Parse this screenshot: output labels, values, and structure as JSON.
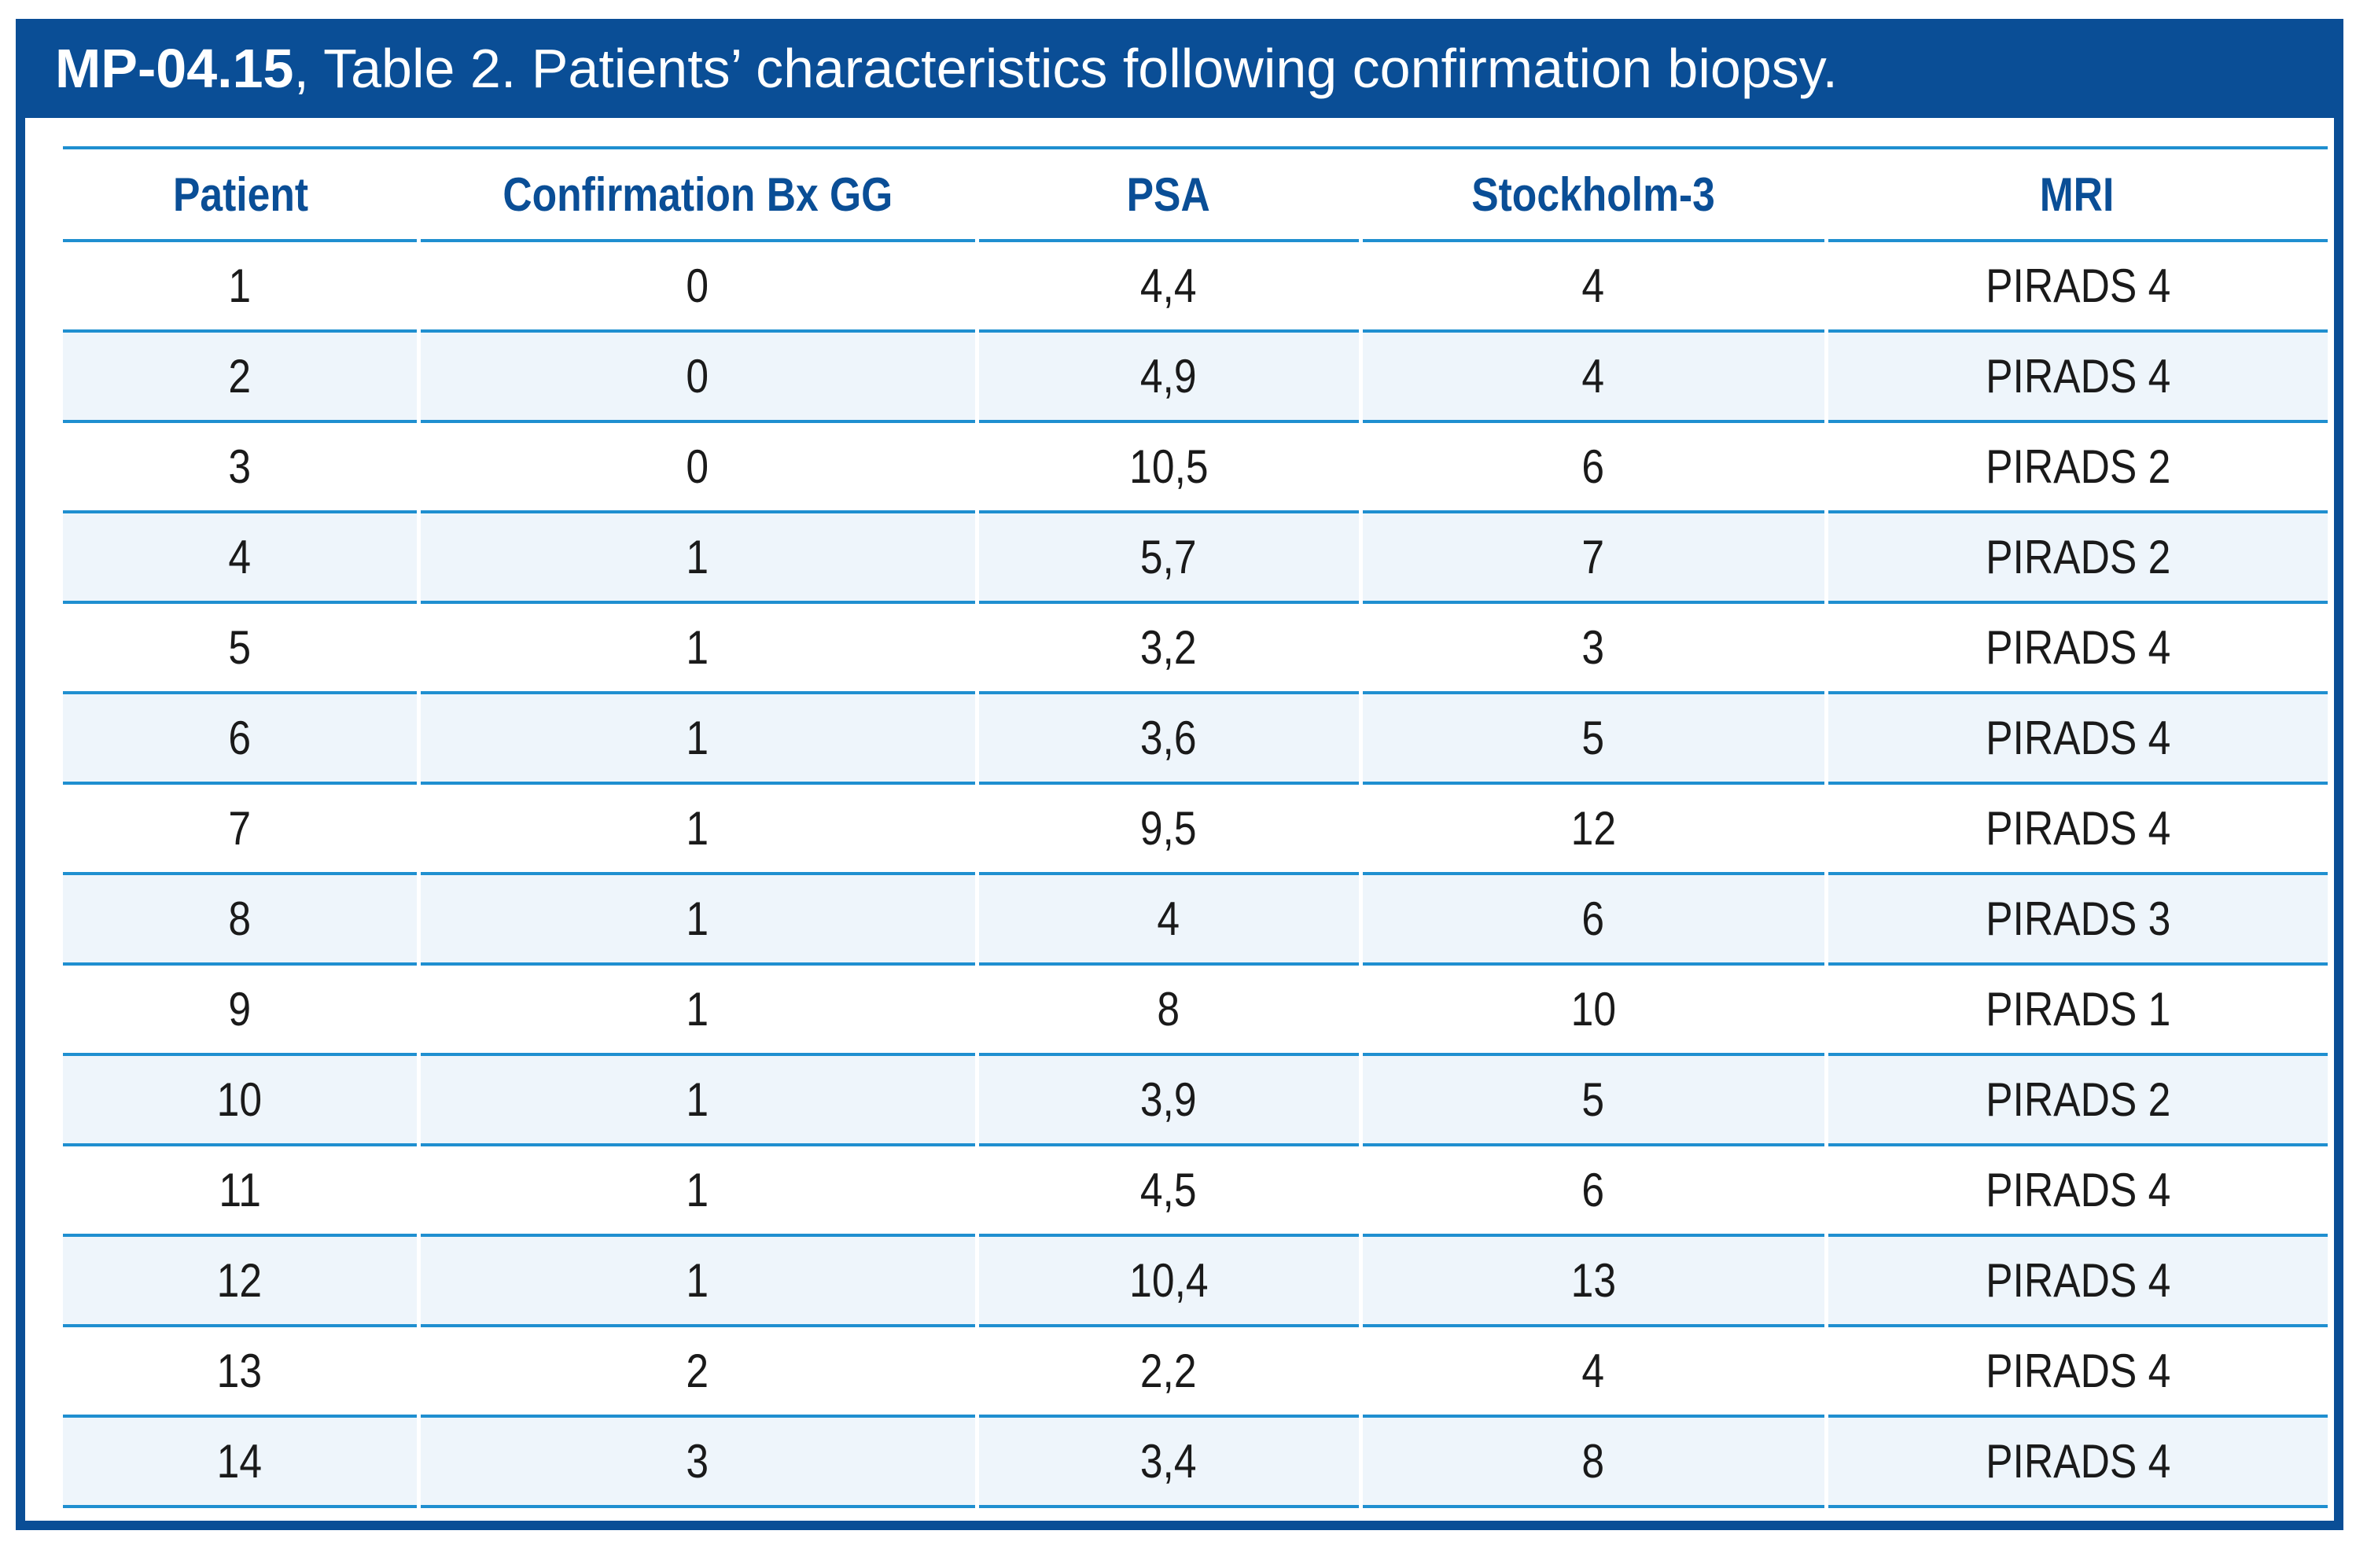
{
  "title": {
    "code": "MP-04.15",
    "text": ", Table 2. Patients’ characteristics following confirmation biopsy."
  },
  "table": {
    "headers": [
      "Patient",
      "Confirmation Bx GG",
      "PSA",
      "Stockholm-3",
      "MRI"
    ],
    "rows": [
      [
        "1",
        "0",
        "4,4",
        "4",
        "PIRADS 4"
      ],
      [
        "2",
        "0",
        "4,9",
        "4",
        "PIRADS 4"
      ],
      [
        "3",
        "0",
        "10,5",
        "6",
        "PIRADS 2"
      ],
      [
        "4",
        "1",
        "5,7",
        "7",
        "PIRADS 2"
      ],
      [
        "5",
        "1",
        "3,2",
        "3",
        "PIRADS 4"
      ],
      [
        "6",
        "1",
        "3,6",
        "5",
        "PIRADS 4"
      ],
      [
        "7",
        "1",
        "9,5",
        "12",
        "PIRADS 4"
      ],
      [
        "8",
        "1",
        "4",
        "6",
        "PIRADS 3"
      ],
      [
        "9",
        "1",
        "8",
        "10",
        "PIRADS 1"
      ],
      [
        "10",
        "1",
        "3,9",
        "5",
        "PIRADS 2"
      ],
      [
        "11",
        "1",
        "4,5",
        "6",
        "PIRADS 4"
      ],
      [
        "12",
        "1",
        "10,4",
        "13",
        "PIRADS 4"
      ],
      [
        "13",
        "2",
        "2,2",
        "4",
        "PIRADS 4"
      ],
      [
        "14",
        "3",
        "3,4",
        "8",
        "PIRADS 4"
      ]
    ]
  },
  "colors": {
    "frame": "#0a4e96",
    "header_text": "#0a4e96",
    "rule": "#1f8fd0",
    "alt_row": "#eef5fb"
  }
}
